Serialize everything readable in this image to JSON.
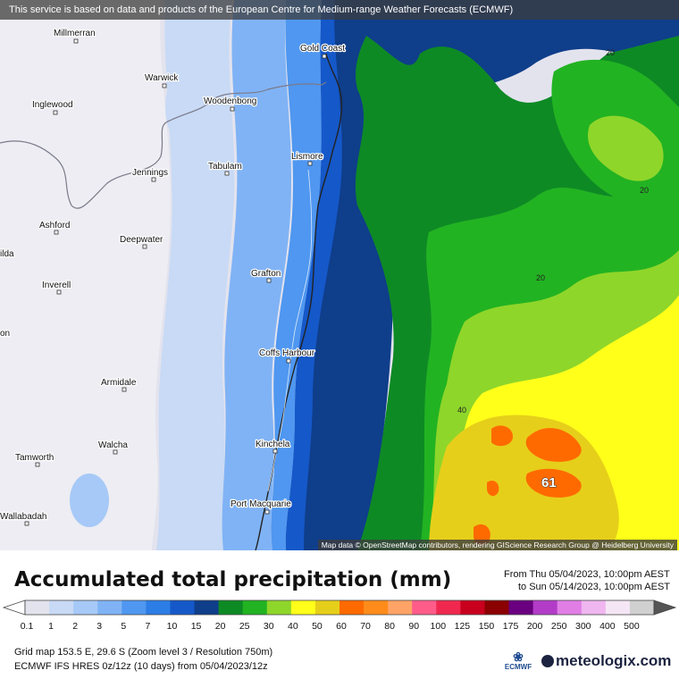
{
  "banner": "This service is based on data and products of the European Centre for Medium-range Weather Forecasts (ECMWF)",
  "attribution": "Map data © OpenStreetMap contributors, rendering GIScience Research Group @ Heidelberg University",
  "legend": {
    "title": "Accumulated total precipitation (mm)",
    "period_from": "From Thu 05/04/2023, 10:00pm AEST",
    "period_to": "to Sun 05/14/2023, 10:00pm AEST",
    "scale": [
      {
        "label": "0.1",
        "color": "#e3e3ee"
      },
      {
        "label": "1",
        "color": "#c8daf5"
      },
      {
        "label": "2",
        "color": "#a6c9f7"
      },
      {
        "label": "3",
        "color": "#80b3f5"
      },
      {
        "label": "5",
        "color": "#4f97f0"
      },
      {
        "label": "7",
        "color": "#2c7de6"
      },
      {
        "label": "10",
        "color": "#1558c9"
      },
      {
        "label": "15",
        "color": "#0f3e8a"
      },
      {
        "label": "20",
        "color": "#0e8a25"
      },
      {
        "label": "25",
        "color": "#22b322"
      },
      {
        "label": "30",
        "color": "#8fd62a"
      },
      {
        "label": "40",
        "color": "#ffff1a"
      },
      {
        "label": "50",
        "color": "#e6cf1a"
      },
      {
        "label": "60",
        "color": "#ff6a00"
      },
      {
        "label": "70",
        "color": "#ff8c1a"
      },
      {
        "label": "80",
        "color": "#ffa366"
      },
      {
        "label": "90",
        "color": "#ff5c8a"
      },
      {
        "label": "100",
        "color": "#f0284f"
      },
      {
        "label": "125",
        "color": "#c8001e"
      },
      {
        "label": "150",
        "color": "#8b0000"
      },
      {
        "label": "175",
        "color": "#6a0080"
      },
      {
        "label": "200",
        "color": "#b23cc8"
      },
      {
        "label": "250",
        "color": "#e07ee6"
      },
      {
        "label": "300",
        "color": "#f0b6f0"
      },
      {
        "label": "400",
        "color": "#f5e6f5"
      },
      {
        "label": "500",
        "color": "#d0d0d0"
      }
    ]
  },
  "info": {
    "line1": "Grid map 153.5 E, 29.6 S (Zoom level 3 / Resolution 750m)",
    "line2": "ECMWF IFS HRES 0z/12z (10 days) from  05/04/2023/12z"
  },
  "logos": {
    "ecmwf": "ECMWF",
    "meteologix": "meteologix.com"
  },
  "map": {
    "cities": [
      {
        "name": "Millmerran"
      },
      {
        "name": "Gold Coast"
      },
      {
        "name": "Warwick"
      },
      {
        "name": "Inglewood"
      },
      {
        "name": "Woodenbong"
      },
      {
        "name": "Lismore"
      },
      {
        "name": "Tabulam"
      },
      {
        "name": "Jennings"
      },
      {
        "name": "Ashford"
      },
      {
        "name": "Deepwater"
      },
      {
        "name": "Grafton"
      },
      {
        "name": "Inverell"
      },
      {
        "name": "Coffs Harbour"
      },
      {
        "name": "Armidale"
      },
      {
        "name": "Walcha"
      },
      {
        "name": "Kinchela"
      },
      {
        "name": "Tamworth"
      },
      {
        "name": "Port Macquarie"
      },
      {
        "name": "Wallabadah"
      },
      {
        "name": "ilda"
      },
      {
        "name": "on"
      }
    ],
    "contour_labels": [
      "20",
      "20",
      "20",
      "40"
    ],
    "max_value": "61"
  }
}
